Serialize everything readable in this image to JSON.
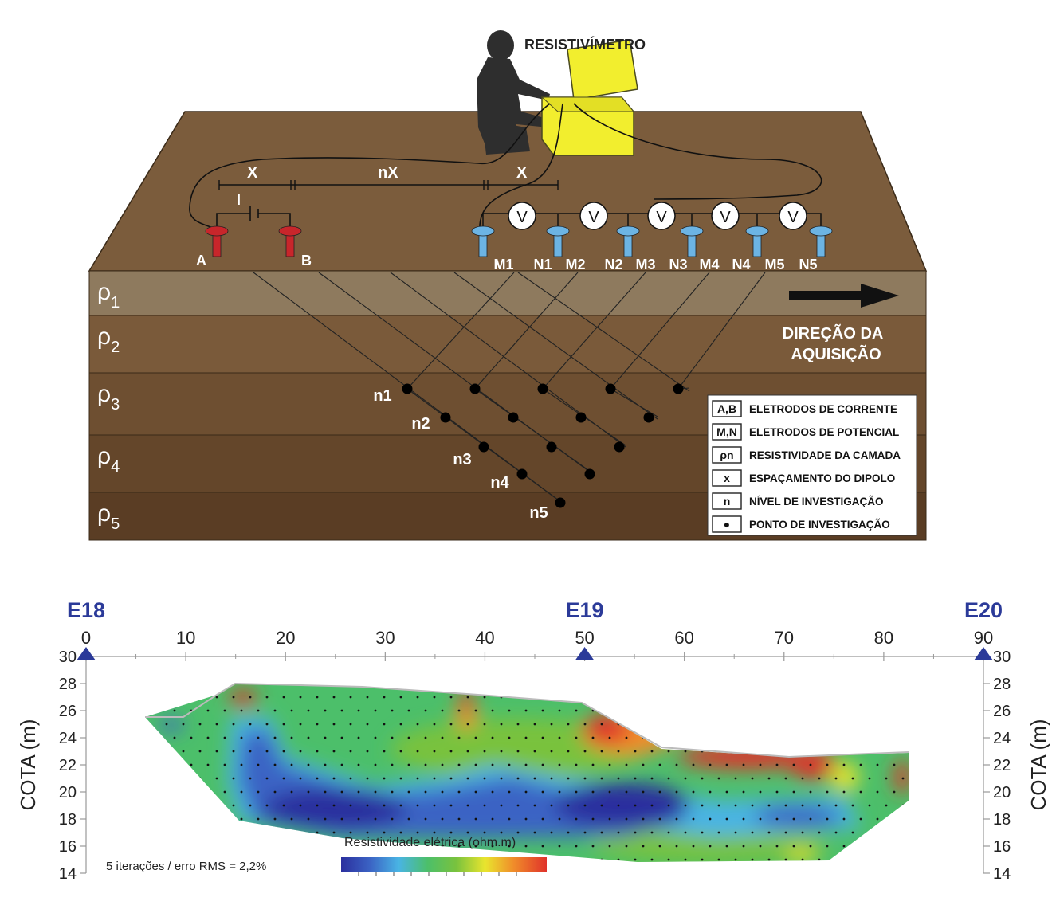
{
  "diagram": {
    "instrument_label": "RESISTIVÍMETRO",
    "spacing": {
      "x_left": "X",
      "nx": "nX",
      "x_right": "X",
      "current": "I"
    },
    "current_electrodes": [
      "A",
      "B"
    ],
    "potential_electrodes": [
      "M1",
      "N1",
      "M2",
      "N2",
      "M3",
      "N3",
      "M4",
      "N4",
      "M5",
      "N5"
    ],
    "voltmeter_symbol": "V",
    "layers": [
      {
        "symbol": "ρ",
        "sub": "1",
        "color": "#8e7a5e"
      },
      {
        "symbol": "ρ",
        "sub": "2",
        "color": "#7a5a3a"
      },
      {
        "symbol": "ρ",
        "sub": "3",
        "color": "#6e4f31"
      },
      {
        "symbol": "ρ",
        "sub": "4",
        "color": "#64462a"
      },
      {
        "symbol": "ρ",
        "sub": "5",
        "color": "#5a3d24"
      }
    ],
    "levels": [
      "n1",
      "n2",
      "n3",
      "n4",
      "n5"
    ],
    "direction": {
      "line1": "DIREÇÃO DA",
      "line2": "AQUISIÇÃO"
    },
    "legend": [
      {
        "key": "A,B",
        "text": "ELETRODOS DE CORRENTE"
      },
      {
        "key": "M,N",
        "text": "ELETRODOS DE POTENCIAL"
      },
      {
        "key": "ρn",
        "text": "RESISTIVIDADE DA CAMADA"
      },
      {
        "key": "x",
        "text": "ESPAÇAMENTO DO DIPOLO"
      },
      {
        "key": "n",
        "text": "NÍVEL DE INVESTIGAÇÃO"
      },
      {
        "key": "●",
        "text": "PONTO DE INVESTIGAÇÃO"
      }
    ],
    "colors": {
      "ground_top": "#7b5c3c",
      "current_electrode": "#c8262b",
      "potential_electrode": "#6cb4e4",
      "instrument": "#f2ee2e"
    }
  },
  "section": {
    "stations": [
      {
        "label": "E18",
        "x": 0
      },
      {
        "label": "E19",
        "x": 50
      },
      {
        "label": "E20",
        "x": 90
      }
    ],
    "x_ticks": [
      0,
      10,
      20,
      30,
      40,
      50,
      60,
      70,
      80,
      90
    ],
    "y_ticks": [
      30,
      28,
      26,
      24,
      22,
      20,
      18,
      16,
      14
    ],
    "y_label_left": "COTA (m)",
    "y_label_right": "COTA (m)",
    "xlim": [
      0,
      90
    ],
    "ylim": [
      14,
      30
    ],
    "inversion_note": "5 iterações / erro RMS = 2,2%",
    "colorbar_label": "Resistividade elétrica (ohm.m)",
    "colormap": [
      "#2b2f9e",
      "#3b63c4",
      "#49b4e4",
      "#4cbf6a",
      "#79c23e",
      "#e9e52e",
      "#f08c2a",
      "#e0322b"
    ],
    "station_color": "#2b3a99"
  }
}
